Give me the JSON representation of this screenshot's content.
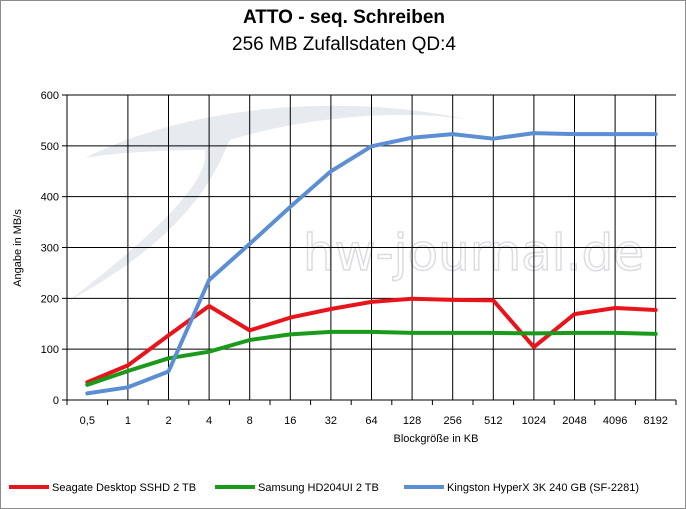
{
  "watermark": "hw-journal.de",
  "chart_data": {
    "type": "line",
    "title": "ATTO - seq. Schreiben",
    "subtitle": "256 MB Zufallsdaten QD:4",
    "xlabel": "Blockgröße in KB",
    "ylabel": "Angabe in MB/s",
    "categories": [
      "0,5",
      "1",
      "2",
      "4",
      "8",
      "16",
      "32",
      "64",
      "128",
      "256",
      "512",
      "1024",
      "2048",
      "4096",
      "8192"
    ],
    "ylim": [
      0,
      600
    ],
    "yticks": [
      0,
      100,
      200,
      300,
      400,
      500,
      600
    ],
    "grid": "horizontal and vertical",
    "legend_position": "bottom",
    "series": [
      {
        "name": "Seagate Desktop SSHD 2 TB",
        "color": "#e8141b",
        "values": [
          35,
          68,
          127,
          185,
          137,
          162,
          179,
          193,
          199,
          197,
          196,
          104,
          169,
          181,
          177
        ]
      },
      {
        "name": "Samsung HD204UI 2 TB",
        "color": "#1a9a1a",
        "values": [
          30,
          57,
          82,
          95,
          118,
          129,
          134,
          134,
          132,
          132,
          132,
          131,
          132,
          132,
          130
        ]
      },
      {
        "name": "Kingston HyperX 3K 240 GB (SF-2281)",
        "color": "#5b8ed3",
        "values": [
          13,
          25,
          56,
          236,
          307,
          380,
          450,
          499,
          516,
          523,
          514,
          525,
          523,
          523,
          523
        ]
      }
    ]
  }
}
